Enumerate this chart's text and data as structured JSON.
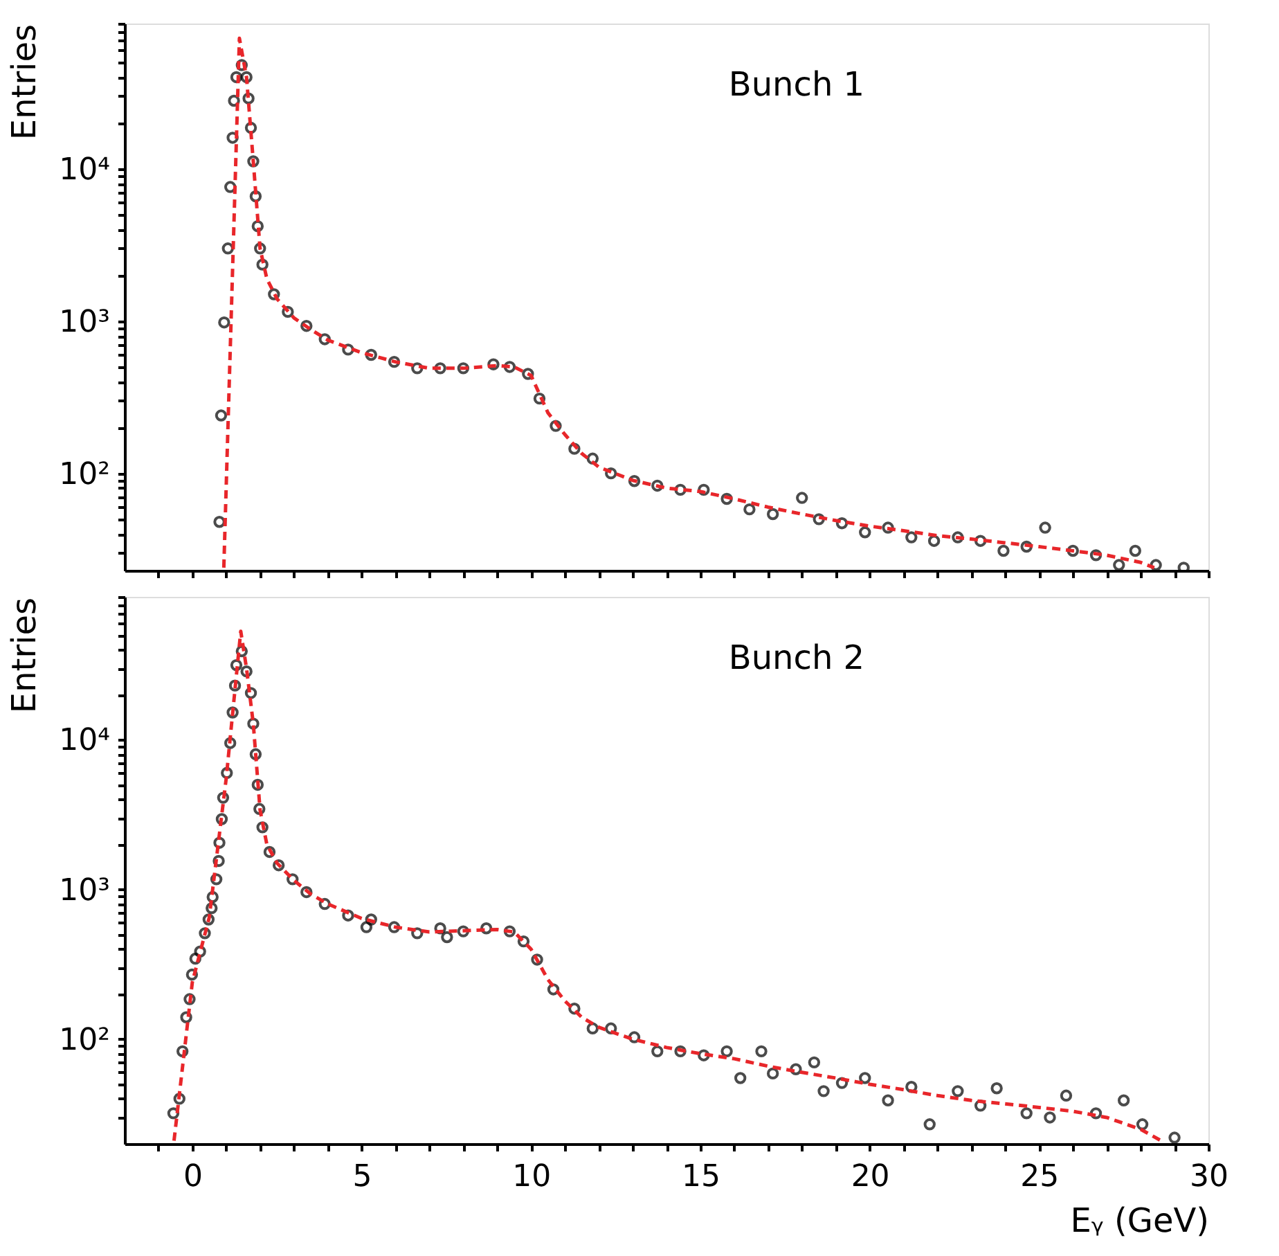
{
  "chart_data": [
    {
      "type": "scatter",
      "ylabel": "Entries",
      "annotations": [
        "Bunch 1"
      ],
      "log": "y",
      "grid": false,
      "legend": false,
      "tick_labels": "y",
      "xlim": [
        -2,
        30
      ],
      "ylim": [
        23,
        90000
      ],
      "xticks": [
        {
          "value": -1,
          "label": null
        },
        0,
        {
          "value": 1,
          "label": null
        },
        {
          "value": 2,
          "label": null
        },
        {
          "value": 3,
          "label": null
        },
        {
          "value": 4,
          "label": null
        },
        5,
        {
          "value": 6,
          "label": null
        },
        {
          "value": 7,
          "label": null
        },
        {
          "value": 8,
          "label": null
        },
        {
          "value": 9,
          "label": null
        },
        10,
        {
          "value": 11,
          "label": null
        },
        {
          "value": 12,
          "label": null
        },
        {
          "value": 13,
          "label": null
        },
        {
          "value": 14,
          "label": null
        },
        15,
        {
          "value": 16,
          "label": null
        },
        {
          "value": 17,
          "label": null
        },
        {
          "value": 18,
          "label": null
        },
        {
          "value": 19,
          "label": null
        },
        20,
        {
          "value": 21,
          "label": null
        },
        {
          "value": 22,
          "label": null
        },
        {
          "value": 23,
          "label": null
        },
        {
          "value": 24,
          "label": null
        },
        25,
        {
          "value": 26,
          "label": null
        },
        {
          "value": 27,
          "label": null
        },
        {
          "value": 28,
          "label": null
        },
        {
          "value": 29,
          "label": null
        },
        30
      ],
      "yticks": [
        {
          "value": 30,
          "label": null
        },
        {
          "value": 40,
          "label": null
        },
        {
          "value": 50,
          "label": null
        },
        {
          "value": 60,
          "label": null
        },
        {
          "value": 70,
          "label": null
        },
        {
          "value": 80,
          "label": null
        },
        {
          "value": 90,
          "label": null
        },
        {
          "value": 100,
          "label": "10²"
        },
        {
          "value": 200,
          "label": null
        },
        {
          "value": 300,
          "label": null
        },
        {
          "value": 400,
          "label": null
        },
        {
          "value": 500,
          "label": null
        },
        {
          "value": 600,
          "label": null
        },
        {
          "value": 700,
          "label": null
        },
        {
          "value": 800,
          "label": null
        },
        {
          "value": 900,
          "label": null
        },
        {
          "value": 1000,
          "label": "10³"
        },
        {
          "value": 2000,
          "label": null
        },
        {
          "value": 3000,
          "label": null
        },
        {
          "value": 4000,
          "label": null
        },
        {
          "value": 5000,
          "label": null
        },
        {
          "value": 6000,
          "label": null
        },
        {
          "value": 7000,
          "label": null
        },
        {
          "value": 8000,
          "label": null
        },
        {
          "value": 9000,
          "label": null
        },
        {
          "value": 10000,
          "label": "10⁴"
        },
        {
          "value": 20000,
          "label": null
        },
        {
          "value": 30000,
          "label": null
        },
        {
          "value": 40000,
          "label": null
        },
        {
          "value": 50000,
          "label": null
        },
        {
          "value": 60000,
          "label": null
        },
        {
          "value": 70000,
          "label": null
        },
        {
          "value": 80000,
          "label": null
        },
        {
          "value": 90000,
          "label": null
        }
      ],
      "series": [
        {
          "type": "scatter",
          "marker": "circle",
          "color": "#000000",
          "x": [
            0.8,
            0.85,
            0.94,
            1.05,
            1.12,
            1.19,
            1.23,
            1.3,
            1.46,
            1.6,
            1.66,
            1.73,
            1.8,
            1.87,
            1.93,
            2.0,
            2.07,
            2.41,
            2.82,
            3.37,
            3.91,
            4.6,
            5.28,
            5.96,
            6.64,
            7.32,
            8.0,
            8.89,
            9.37,
            9.91,
            10.25,
            10.73,
            11.28,
            11.82,
            12.36,
            13.05,
            13.73,
            14.41,
            15.1,
            15.78,
            16.45,
            17.14,
            18.0,
            18.5,
            19.18,
            19.86,
            20.54,
            21.23,
            21.9,
            22.6,
            23.27,
            23.95,
            24.63,
            25.18,
            26.0,
            26.68,
            27.36,
            27.84,
            28.45,
            29.27
          ],
          "values": [
            48,
            240,
            980,
            3000,
            7600,
            16000,
            28000,
            40000,
            48000,
            40000,
            29000,
            18600,
            11200,
            6600,
            4200,
            3000,
            2350,
            1500,
            1150,
            930,
            760,
            650,
            600,
            540,
            490,
            490,
            490,
            520,
            500,
            450,
            310,
            205,
            145,
            125,
            100,
            89,
            83,
            78,
            78,
            68,
            58,
            54,
            69,
            50,
            47,
            41,
            44,
            38,
            36,
            38,
            36,
            31,
            33,
            44,
            31,
            29,
            25,
            31,
            25,
            24
          ]
        },
        {
          "type": "line",
          "line_style": "dashed",
          "marker": "none",
          "color": "#e8262a",
          "x": [
            0.93,
            1.39,
            1.6,
            1.8,
            2.0,
            2.2,
            2.5,
            3,
            3.5,
            4,
            5,
            6,
            7,
            8,
            9,
            9.5,
            10,
            10.5,
            11,
            11.5,
            12,
            13,
            14,
            15,
            16,
            17,
            18,
            19,
            20,
            21,
            22,
            23,
            24,
            25,
            26,
            27,
            28,
            28.4
          ],
          "values": [
            24,
            72000,
            40000,
            11200,
            3000,
            1900,
            1400,
            1050,
            880,
            750,
            620,
            540,
            490,
            490,
            510,
            500,
            440,
            250,
            180,
            135,
            110,
            90,
            80,
            76,
            68,
            60,
            54,
            49,
            45,
            42,
            39,
            37,
            35,
            33,
            31,
            29,
            26,
            24
          ]
        }
      ]
    },
    {
      "type": "scatter",
      "ylabel": "Entries",
      "xlabel": "Eᵧ (GeV)",
      "annotations": [
        "Bunch 2"
      ],
      "log": "y",
      "grid": false,
      "legend": false,
      "xlim": [
        -2,
        30
      ],
      "ylim": [
        20,
        90000
      ],
      "xticks": [
        {
          "value": -1,
          "label": null
        },
        0,
        {
          "value": 1,
          "label": null
        },
        {
          "value": 2,
          "label": null
        },
        {
          "value": 3,
          "label": null
        },
        {
          "value": 4,
          "label": null
        },
        5,
        {
          "value": 6,
          "label": null
        },
        {
          "value": 7,
          "label": null
        },
        {
          "value": 8,
          "label": null
        },
        {
          "value": 9,
          "label": null
        },
        10,
        {
          "value": 11,
          "label": null
        },
        {
          "value": 12,
          "label": null
        },
        {
          "value": 13,
          "label": null
        },
        {
          "value": 14,
          "label": null
        },
        15,
        {
          "value": 16,
          "label": null
        },
        {
          "value": 17,
          "label": null
        },
        {
          "value": 18,
          "label": null
        },
        {
          "value": 19,
          "label": null
        },
        20,
        {
          "value": 21,
          "label": null
        },
        {
          "value": 22,
          "label": null
        },
        {
          "value": 23,
          "label": null
        },
        {
          "value": 24,
          "label": null
        },
        25,
        {
          "value": 26,
          "label": null
        },
        {
          "value": 27,
          "label": null
        },
        {
          "value": 28,
          "label": null
        },
        {
          "value": 29,
          "label": null
        },
        30
      ],
      "yticks": [
        {
          "value": 30,
          "label": null
        },
        {
          "value": 40,
          "label": null
        },
        {
          "value": 50,
          "label": null
        },
        {
          "value": 60,
          "label": null
        },
        {
          "value": 70,
          "label": null
        },
        {
          "value": 80,
          "label": null
        },
        {
          "value": 90,
          "label": null
        },
        {
          "value": 100,
          "label": "10²"
        },
        {
          "value": 200,
          "label": null
        },
        {
          "value": 300,
          "label": null
        },
        {
          "value": 400,
          "label": null
        },
        {
          "value": 500,
          "label": null
        },
        {
          "value": 600,
          "label": null
        },
        {
          "value": 700,
          "label": null
        },
        {
          "value": 800,
          "label": null
        },
        {
          "value": 900,
          "label": null
        },
        {
          "value": 1000,
          "label": "10³"
        },
        {
          "value": 2000,
          "label": null
        },
        {
          "value": 3000,
          "label": null
        },
        {
          "value": 4000,
          "label": null
        },
        {
          "value": 5000,
          "label": null
        },
        {
          "value": 6000,
          "label": null
        },
        {
          "value": 7000,
          "label": null
        },
        {
          "value": 8000,
          "label": null
        },
        {
          "value": 9000,
          "label": null
        },
        {
          "value": 10000,
          "label": "10⁴"
        },
        {
          "value": 20000,
          "label": null
        },
        {
          "value": 30000,
          "label": null
        },
        {
          "value": 40000,
          "label": null
        },
        {
          "value": 50000,
          "label": null
        },
        {
          "value": 60000,
          "label": null
        },
        {
          "value": 70000,
          "label": null
        },
        {
          "value": 80000,
          "label": null
        },
        {
          "value": 90000,
          "label": null
        }
      ],
      "series": [
        {
          "type": "scatter",
          "marker": "circle",
          "color": "#000000",
          "x": [
            -0.56,
            -0.38,
            -0.29,
            -0.18,
            -0.08,
            -0.01,
            0.09,
            0.23,
            0.37,
            0.48,
            0.57,
            0.6,
            0.71,
            0.78,
            0.8,
            0.87,
            0.91,
            1.02,
            1.12,
            1.19,
            1.26,
            1.3,
            1.46,
            1.6,
            1.73,
            1.8,
            1.87,
            1.93,
            1.98,
            2.07,
            2.28,
            2.55,
            2.96,
            3.37,
            3.91,
            4.6,
            5.14,
            5.28,
            5.96,
            6.64,
            7.32,
            7.52,
            8.0,
            8.68,
            9.37,
            9.78,
            10.18,
            10.66,
            11.28,
            11.82,
            12.36,
            13.05,
            13.73,
            14.41,
            15.1,
            15.78,
            16.18,
            16.8,
            17.14,
            17.82,
            18.36,
            18.64,
            19.18,
            19.86,
            20.54,
            21.23,
            21.77,
            22.6,
            23.27,
            23.75,
            24.63,
            25.32,
            25.8,
            26.68,
            27.5,
            28.05,
            29.0
          ],
          "values": [
            32,
            40,
            83,
            140,
            185,
            270,
            345,
            385,
            510,
            630,
            750,
            890,
            1170,
            1550,
            2050,
            2950,
            4100,
            6000,
            9500,
            15200,
            23000,
            31500,
            39000,
            28600,
            20500,
            12800,
            8000,
            5000,
            3450,
            2600,
            1780,
            1450,
            1170,
            960,
            800,
            670,
            560,
            630,
            560,
            510,
            550,
            480,
            525,
            550,
            525,
            450,
            340,
            215,
            160,
            118,
            118,
            103,
            83,
            83,
            78,
            83,
            55,
            83,
            59,
            63,
            70,
            45,
            51,
            55,
            39,
            48,
            27,
            45,
            36,
            47,
            32,
            30,
            42,
            32,
            39,
            27,
            22
          ]
        },
        {
          "type": "line",
          "line_style": "dashed",
          "marker": "none",
          "color": "#e8262a",
          "x": [
            -0.54,
            0,
            0.5,
            1,
            1.43,
            1.6,
            1.8,
            2.0,
            2.2,
            2.5,
            3,
            3.5,
            4,
            5,
            6,
            7,
            8,
            9,
            9.5,
            10,
            10.5,
            11,
            11.5,
            12,
            13,
            14,
            15,
            16,
            17,
            18,
            19,
            20,
            21,
            22,
            23,
            24,
            25,
            26,
            27,
            28,
            28.6
          ],
          "values": [
            21,
            240,
            650,
            5500,
            53000,
            30000,
            12800,
            3400,
            2000,
            1500,
            1150,
            930,
            800,
            640,
            560,
            520,
            530,
            540,
            520,
            400,
            250,
            180,
            140,
            120,
            100,
            88,
            80,
            74,
            66,
            60,
            55,
            50,
            46,
            42,
            39,
            37,
            35,
            33,
            30,
            25,
            21
          ]
        }
      ]
    }
  ]
}
